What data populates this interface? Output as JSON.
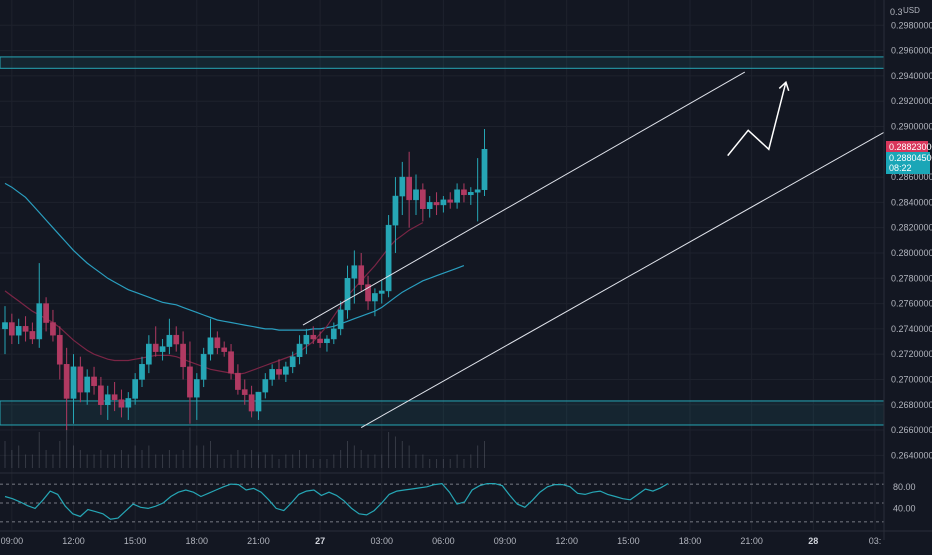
{
  "chart_data": {
    "type": "candlestick",
    "currency_label": "USD",
    "top_price_label": "0.3",
    "price_axis": {
      "min": 0.263,
      "max": 0.3,
      "ticks": [
        "0.29800000",
        "0.29600000",
        "0.29400000",
        "0.29200000",
        "0.29000000",
        "0.28600000",
        "0.28400000",
        "0.28200000",
        "0.28000000",
        "0.27800000",
        "0.27600000",
        "0.27400000",
        "0.27200000",
        "0.27000000",
        "0.26800000",
        "0.26600000",
        "0.26400000"
      ],
      "tick_values": [
        0.298,
        0.296,
        0.294,
        0.292,
        0.29,
        0.286,
        0.284,
        0.282,
        0.28,
        0.278,
        0.276,
        0.274,
        0.272,
        0.27,
        0.268,
        0.266,
        0.264
      ]
    },
    "time_axis": {
      "labels": [
        "09:00",
        "12:00",
        "15:00",
        "18:00",
        "21:00",
        "27",
        "03:00",
        "06:00",
        "09:00",
        "12:00",
        "15:00",
        "18:00",
        "21:00",
        "28",
        "03:"
      ],
      "label_index": [
        1,
        10,
        19,
        28,
        37,
        46,
        55,
        64,
        73,
        82,
        91,
        100,
        109,
        118,
        127
      ]
    },
    "last_price": "0.28823000",
    "ma_price": "0.28804500",
    "countdown": "08:22",
    "candles": [
      [
        0.274,
        0.2758,
        0.272,
        0.2745
      ],
      [
        0.2745,
        0.2752,
        0.2728,
        0.2735
      ],
      [
        0.2735,
        0.2748,
        0.2728,
        0.2742
      ],
      [
        0.2742,
        0.275,
        0.273,
        0.2738
      ],
      [
        0.2738,
        0.2745,
        0.2728,
        0.2732
      ],
      [
        0.2732,
        0.2792,
        0.2725,
        0.276
      ],
      [
        0.276,
        0.2765,
        0.2738,
        0.2745
      ],
      [
        0.2745,
        0.2755,
        0.273,
        0.2735
      ],
      [
        0.2735,
        0.2742,
        0.27,
        0.2712
      ],
      [
        0.2712,
        0.2725,
        0.266,
        0.2685
      ],
      [
        0.2685,
        0.272,
        0.2665,
        0.271
      ],
      [
        0.271,
        0.2718,
        0.2682,
        0.269
      ],
      [
        0.269,
        0.2708,
        0.268,
        0.2702
      ],
      [
        0.2702,
        0.271,
        0.2688,
        0.2695
      ],
      [
        0.2695,
        0.2702,
        0.2672,
        0.268
      ],
      [
        0.268,
        0.2695,
        0.2668,
        0.2688
      ],
      [
        0.2688,
        0.2698,
        0.2675,
        0.2684
      ],
      [
        0.2684,
        0.2692,
        0.267,
        0.2678
      ],
      [
        0.2678,
        0.269,
        0.2668,
        0.2685
      ],
      [
        0.2685,
        0.2705,
        0.268,
        0.27
      ],
      [
        0.27,
        0.2718,
        0.2694,
        0.2712
      ],
      [
        0.2712,
        0.2735,
        0.2705,
        0.2728
      ],
      [
        0.2728,
        0.2742,
        0.2718,
        0.2722
      ],
      [
        0.2722,
        0.2732,
        0.2715,
        0.2726
      ],
      [
        0.2726,
        0.2748,
        0.272,
        0.2735
      ],
      [
        0.2735,
        0.2742,
        0.2722,
        0.2728
      ],
      [
        0.2728,
        0.2738,
        0.27,
        0.271
      ],
      [
        0.271,
        0.273,
        0.2665,
        0.2686
      ],
      [
        0.2686,
        0.2705,
        0.2668,
        0.27
      ],
      [
        0.27,
        0.2725,
        0.2694,
        0.272
      ],
      [
        0.272,
        0.2748,
        0.2715,
        0.2733
      ],
      [
        0.2733,
        0.2738,
        0.272,
        0.2725
      ],
      [
        0.2725,
        0.273,
        0.2718,
        0.2722
      ],
      [
        0.2722,
        0.2728,
        0.27,
        0.2705
      ],
      [
        0.2705,
        0.2712,
        0.2688,
        0.2692
      ],
      [
        0.2692,
        0.27,
        0.268,
        0.2688
      ],
      [
        0.2688,
        0.2695,
        0.267,
        0.2675
      ],
      [
        0.2675,
        0.269,
        0.2668,
        0.269
      ],
      [
        0.269,
        0.2705,
        0.2685,
        0.27
      ],
      [
        0.27,
        0.2712,
        0.2695,
        0.2708
      ],
      [
        0.2708,
        0.2716,
        0.27,
        0.2704
      ],
      [
        0.2704,
        0.2714,
        0.2698,
        0.271
      ],
      [
        0.271,
        0.2722,
        0.2705,
        0.2718
      ],
      [
        0.2718,
        0.2735,
        0.2712,
        0.2728
      ],
      [
        0.2728,
        0.274,
        0.272,
        0.2735
      ],
      [
        0.2735,
        0.2742,
        0.2728,
        0.2732
      ],
      [
        0.2732,
        0.2738,
        0.2725,
        0.2729
      ],
      [
        0.2729,
        0.2735,
        0.2722,
        0.2732
      ],
      [
        0.2732,
        0.2745,
        0.2728,
        0.274
      ],
      [
        0.274,
        0.2762,
        0.2735,
        0.2755
      ],
      [
        0.2755,
        0.279,
        0.2748,
        0.278
      ],
      [
        0.278,
        0.2802,
        0.276,
        0.279
      ],
      [
        0.279,
        0.28,
        0.277,
        0.2775
      ],
      [
        0.2775,
        0.2782,
        0.2755,
        0.2762
      ],
      [
        0.2762,
        0.2772,
        0.275,
        0.2768
      ],
      [
        0.2768,
        0.2778,
        0.276,
        0.277
      ],
      [
        0.277,
        0.283,
        0.2765,
        0.2822
      ],
      [
        0.2822,
        0.286,
        0.28,
        0.2845
      ],
      [
        0.2845,
        0.2872,
        0.283,
        0.286
      ],
      [
        0.286,
        0.288,
        0.282,
        0.2842
      ],
      [
        0.2842,
        0.2862,
        0.283,
        0.285
      ],
      [
        0.285,
        0.2855,
        0.2825,
        0.2835
      ],
      [
        0.2835,
        0.2845,
        0.2828,
        0.284
      ],
      [
        0.284,
        0.2848,
        0.283,
        0.2838
      ],
      [
        0.2838,
        0.2845,
        0.2832,
        0.2842
      ],
      [
        0.2842,
        0.2848,
        0.2835,
        0.284
      ],
      [
        0.284,
        0.2855,
        0.2835,
        0.285
      ],
      [
        0.285,
        0.2855,
        0.284,
        0.2846
      ],
      [
        0.2846,
        0.2852,
        0.2838,
        0.2848
      ],
      [
        0.2848,
        0.2875,
        0.2825,
        0.285
      ],
      [
        0.285,
        0.2898,
        0.2845,
        0.2882
      ]
    ],
    "ma_slow": [
      0.2855,
      0.2852,
      0.2848,
      0.2844,
      0.2838,
      0.2832,
      0.2826,
      0.282,
      0.2814,
      0.2808,
      0.2802,
      0.2797,
      0.2792,
      0.2788,
      0.2784,
      0.278,
      0.2777,
      0.2774,
      0.2771,
      0.2769,
      0.2767,
      0.2765,
      0.2763,
      0.2761,
      0.276,
      0.2759,
      0.2757,
      0.2755,
      0.2753,
      0.2751,
      0.2749,
      0.2747,
      0.2746,
      0.2745,
      0.2744,
      0.2743,
      0.2742,
      0.2741,
      0.274,
      0.274,
      0.2739,
      0.2739,
      0.2739,
      0.2739,
      0.2739,
      0.274,
      0.274,
      0.2741,
      0.2742,
      0.2744,
      0.2746,
      0.2748,
      0.275,
      0.2752,
      0.2754,
      0.2757,
      0.2761,
      0.2765,
      0.2769,
      0.2772,
      0.2775,
      0.2778,
      0.278,
      0.2782,
      0.2784,
      0.2786,
      0.2788,
      0.279
    ],
    "ma_fast": [
      0.277,
      0.2766,
      0.2762,
      0.2758,
      0.2754,
      0.2751,
      0.2748,
      0.2745,
      0.2741,
      0.2736,
      0.2731,
      0.2727,
      0.2723,
      0.272,
      0.2718,
      0.2716,
      0.2715,
      0.2715,
      0.2715,
      0.2716,
      0.2717,
      0.2718,
      0.2719,
      0.2719,
      0.2719,
      0.2718,
      0.2716,
      0.2714,
      0.2712,
      0.271,
      0.2708,
      0.2707,
      0.2706,
      0.2705,
      0.2704,
      0.2705,
      0.2707,
      0.2709,
      0.2711,
      0.2713,
      0.2715,
      0.2717,
      0.2719,
      0.2722,
      0.2726,
      0.273,
      0.2736,
      0.2742,
      0.275,
      0.2758,
      0.2766,
      0.2772,
      0.2778,
      0.2784,
      0.279,
      0.2797,
      0.2804,
      0.281,
      0.2814,
      0.2818,
      0.2821,
      0.2824
    ],
    "zones": [
      {
        "from": 0.2946,
        "to": 0.2955
      },
      {
        "from": 0.2664,
        "to": 0.2683
      }
    ],
    "channel": {
      "upper": [
        [
          43.5,
          0.2743
        ],
        [
          108,
          0.2943
        ]
      ],
      "lower": [
        [
          52,
          0.2662
        ],
        [
          138,
          0.2925
        ]
      ]
    },
    "projection_arrow": [
      [
        105.5,
        0.2877
      ],
      [
        108.5,
        0.2897
      ],
      [
        111.5,
        0.2882
      ],
      [
        114,
        0.2935
      ]
    ],
    "volume": [
      0.6,
      0.4,
      0.5,
      0.3,
      0.3,
      0.8,
      0.4,
      0.3,
      0.6,
      0.9,
      0.5,
      0.4,
      0.3,
      0.3,
      0.4,
      0.3,
      0.3,
      0.4,
      0.3,
      0.5,
      0.4,
      0.5,
      0.3,
      0.3,
      0.4,
      0.3,
      0.4,
      0.9,
      0.5,
      0.5,
      0.6,
      0.3,
      0.2,
      0.3,
      0.4,
      0.3,
      0.4,
      0.3,
      0.3,
      0.3,
      0.2,
      0.3,
      0.3,
      0.4,
      0.3,
      0.2,
      0.2,
      0.2,
      0.3,
      0.4,
      0.6,
      0.5,
      0.4,
      0.3,
      0.3,
      0.3,
      0.8,
      0.7,
      0.6,
      0.5,
      0.3,
      0.3,
      0.2,
      0.2,
      0.2,
      0.2,
      0.3,
      0.2,
      0.3,
      0.5,
      0.6
    ],
    "rsi": {
      "levels": [
        "80.00",
        "40.00"
      ],
      "level_values": [
        80,
        40
      ],
      "overbought": 85,
      "oversold": 15,
      "values": [
        62,
        58,
        52,
        45,
        40,
        55,
        72,
        66,
        44,
        30,
        25,
        38,
        34,
        30,
        20,
        22,
        35,
        48,
        42,
        40,
        44,
        50,
        62,
        70,
        74,
        70,
        62,
        68,
        74,
        80,
        85,
        84,
        74,
        77,
        70,
        56,
        40,
        36,
        50,
        66,
        72,
        74,
        64,
        70,
        64,
        54,
        40,
        30,
        28,
        36,
        50,
        66,
        72,
        74,
        76,
        78,
        80,
        84,
        86,
        70,
        48,
        52,
        74,
        82,
        86,
        86,
        82,
        64,
        48,
        42,
        55,
        70,
        80,
        84,
        84,
        80,
        68,
        66,
        70,
        72,
        66,
        62,
        58,
        56,
        66,
        76,
        72,
        78,
        86
      ]
    }
  }
}
